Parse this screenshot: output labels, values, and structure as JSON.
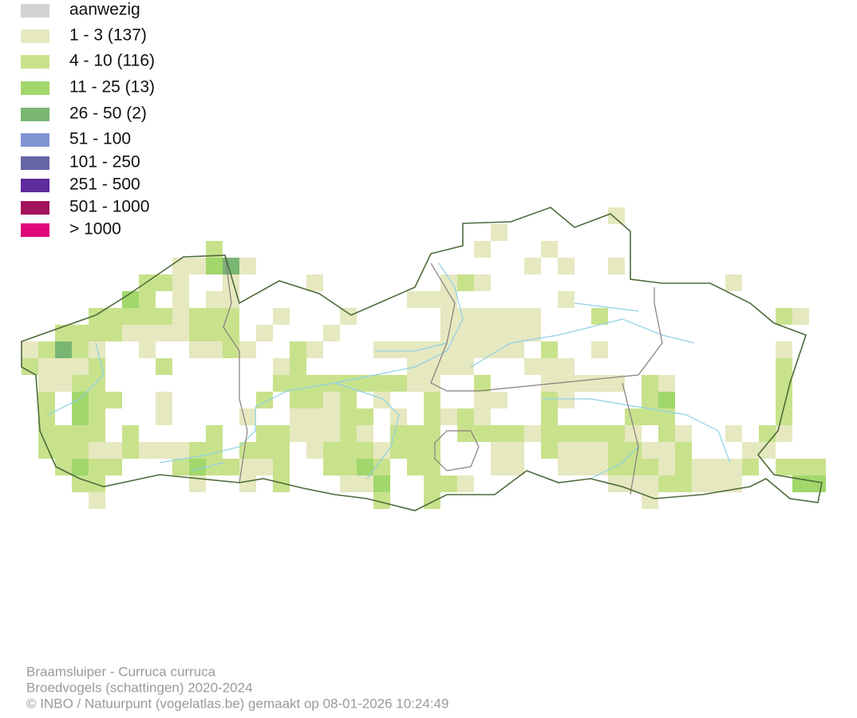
{
  "legend": [
    {
      "label": "aanwezig",
      "color": "#d3d3d3"
    },
    {
      "label": "1 - 3 (137)",
      "color": "#e6e8c0"
    },
    {
      "label": "4 - 10 (116)",
      "color": "#c8e28c"
    },
    {
      "label": "11 - 25 (13)",
      "color": "#a1d76b"
    },
    {
      "label": "26 - 50 (2)",
      "color": "#79b573"
    },
    {
      "label": "51 - 100",
      "color": "#8195d5"
    },
    {
      "label": "101 - 250",
      "color": "#6565a5"
    },
    {
      "label": "251 - 500",
      "color": "#5f2b9d"
    },
    {
      "label": "501 - 1000",
      "color": "#a4135a"
    },
    {
      "label": "> 1000",
      "color": "#e0087a"
    }
  ],
  "footer": [
    "Braamsluiper - Curruca curruca",
    "Broedvogels (schattingen) 2020-2024",
    "© INBO / Natuurpunt (vogelatlas.be) gemaakt op 08-01-2026 10:24:49"
  ]
}
